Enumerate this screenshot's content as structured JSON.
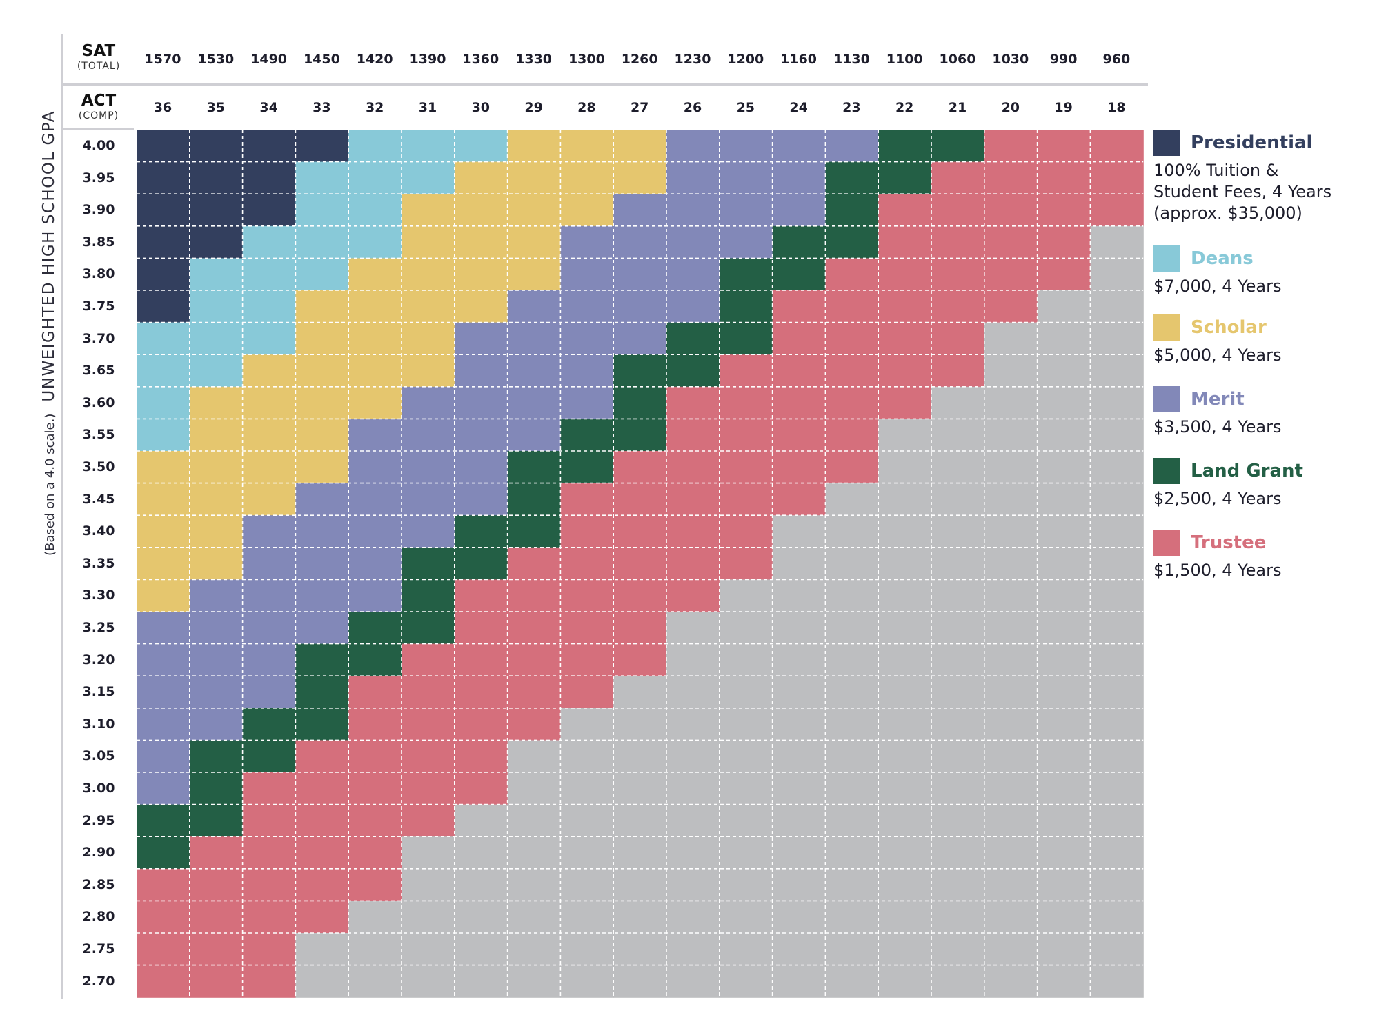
{
  "header": {
    "sat_label": "SAT",
    "sat_sub": "(TOTAL)",
    "act_label": "ACT",
    "act_sub": "(COMP)"
  },
  "axis": {
    "gpa_title": "UNWEIGHTED HIGH SCHOOL GPA",
    "gpa_subtitle": "(Based on a 4.0 scale.)"
  },
  "colors": {
    "presidential": "#333f5e",
    "deans": "#88c9d8",
    "scholar": "#e5c66e",
    "merit": "#8288b8",
    "land_grant": "#235f45",
    "trustee": "#d56f7c",
    "none": "#bdbec0",
    "gridline": "#ffffff"
  },
  "legend": [
    {
      "key": "P",
      "name": "Presidential",
      "color": "#333f5e",
      "desc": [
        "100% Tuition &",
        "Student Fees, 4 Years",
        "(approx. $35,000)"
      ]
    },
    {
      "key": "D",
      "name": "Deans",
      "color": "#88c9d8",
      "desc": [
        "$7,000, 4 Years"
      ]
    },
    {
      "key": "S",
      "name": "Scholar",
      "color": "#e5c66e",
      "desc": [
        "$5,000, 4 Years"
      ]
    },
    {
      "key": "M",
      "name": "Merit",
      "color": "#8288b8",
      "desc": [
        "$3,500, 4 Years"
      ]
    },
    {
      "key": "L",
      "name": "Land Grant",
      "color": "#235f45",
      "desc": [
        "$2,500, 4 Years"
      ]
    },
    {
      "key": "T",
      "name": "Trustee",
      "color": "#d56f7c",
      "desc": [
        "$1,500, 4 Years"
      ]
    }
  ],
  "chart_data": {
    "type": "heatmap",
    "sat": [
      "1570",
      "1530",
      "1490",
      "1450",
      "1420",
      "1390",
      "1360",
      "1330",
      "1300",
      "1260",
      "1230",
      "1200",
      "1160",
      "1130",
      "1100",
      "1060",
      "1030",
      "990",
      "960"
    ],
    "act": [
      "36",
      "35",
      "34",
      "33",
      "32",
      "31",
      "30",
      "29",
      "28",
      "27",
      "26",
      "25",
      "24",
      "23",
      "22",
      "21",
      "20",
      "19",
      "18"
    ],
    "gpa": [
      "4.00",
      "3.95",
      "3.90",
      "3.85",
      "3.80",
      "3.75",
      "3.70",
      "3.65",
      "3.60",
      "3.55",
      "3.50",
      "3.45",
      "3.40",
      "3.35",
      "3.30",
      "3.25",
      "3.20",
      "3.15",
      "3.10",
      "3.05",
      "3.00",
      "2.95",
      "2.90",
      "2.85",
      "2.80",
      "2.75",
      "2.70"
    ],
    "category_key": {
      "P": "Presidential",
      "D": "Deans",
      "S": "Scholar",
      "M": "Merit",
      "L": "Land Grant",
      "T": "Trustee",
      "N": "none"
    },
    "rows": [
      "PPPPDDDSSSMMMMLLTTT",
      "PPPDDDSSSSMMMLLTTTT",
      "PPPDDSSSSMMMMLTTTTT",
      "PPDDDSSSMMMMLLTTTTN",
      "PDDDSSSSMMMLLTTTTTN",
      "PDDSSSSMMMMLTTTTTNN",
      "DDDSSSMMMMLLTTTTNNN",
      "DDSSSSMMMLLTTTTTNNN",
      "DSSSSMMMMLTTTTTNNNN",
      "DSSSMMMMLLTTTTNNNNN",
      "SSSSMMMLLTTTTTNNNNN",
      "SSSMMMMLTTTTTNNNNNN",
      "SSMMMMLLTTTTNNNNNNN",
      "SSMMMLLTTTTTNNNNNNN",
      "SMMMMLTTTTTNNNNNNNN",
      "MMMMLLTTTTNNNNNNNNN",
      "MMMLLTTTTTNNNNNNNNN",
      "MMMLTTTTTNNNNNNNNNN",
      "MMLLTTTTNNNNNNNNNNN",
      "MLLTTTTNNNNNNNNNNNN",
      "MLTTTTTNNNNNNNNNNNN",
      "LLTTTTNNNNNNNNNNNNN",
      "LTTTTNNNNNNNNNNNNNN",
      "TTTTTNNNNNNNNNNNNNN",
      "TTTTNNNNNNNNNNNNNNN",
      "TTTNNNNNNNNNNNNNNNN",
      "TTTNNNNNNNNNNNNNNNN"
    ],
    "xlabel": "",
    "ylabel": "UNWEIGHTED HIGH SCHOOL GPA",
    "legend_position": "right"
  }
}
